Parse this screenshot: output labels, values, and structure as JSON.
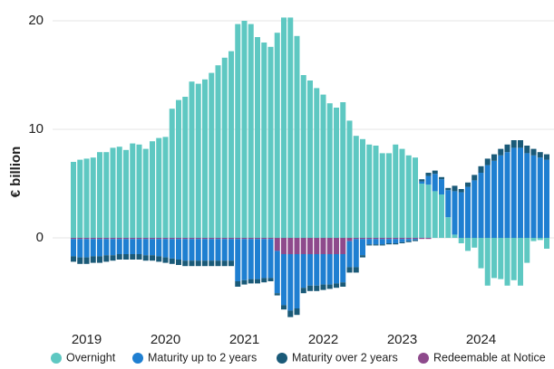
{
  "chart_data": {
    "type": "stacked-bar",
    "y_label": "€ billion",
    "categories": [
      null,
      null,
      "2019",
      null,
      null,
      null,
      null,
      null,
      null,
      null,
      null,
      null,
      null,
      null,
      "2020",
      null,
      null,
      null,
      null,
      null,
      null,
      null,
      null,
      null,
      null,
      null,
      "2021",
      null,
      null,
      null,
      null,
      null,
      null,
      null,
      null,
      null,
      null,
      null,
      "2022",
      null,
      null,
      null,
      null,
      null,
      null,
      null,
      null,
      null,
      null,
      null,
      "2023",
      null,
      null,
      null,
      null,
      null,
      null,
      null,
      null,
      null,
      null,
      null,
      "2024",
      null,
      null,
      null,
      null,
      null,
      null,
      null,
      null,
      null,
      null
    ],
    "series": [
      {
        "name": "Overnight",
        "color": "#5ec8c2",
        "values": [
          7.0,
          7.2,
          7.3,
          7.4,
          7.9,
          7.9,
          8.3,
          8.4,
          8.1,
          8.7,
          8.6,
          8.2,
          8.9,
          9.2,
          9.3,
          11.9,
          12.7,
          13.0,
          14.4,
          14.2,
          14.6,
          15.2,
          15.9,
          16.6,
          17.2,
          19.7,
          20.0,
          19.7,
          18.5,
          18.0,
          17.6,
          18.9,
          20.3,
          20.3,
          18.6,
          15.0,
          14.5,
          13.8,
          13.2,
          12.4,
          12.0,
          12.5,
          10.8,
          9.4,
          9.1,
          8.6,
          8.5,
          7.8,
          7.8,
          8.6,
          8.2,
          7.6,
          7.4,
          5.0,
          4.9,
          4.3,
          4.0,
          1.9,
          0.3,
          -0.5,
          -1.2,
          -0.9,
          -2.8,
          -4.4,
          -3.7,
          -3.8,
          -4.4,
          -3.9,
          -4.4,
          -2.3,
          -0.3,
          -0.2,
          -1.0
        ]
      },
      {
        "name": "Maturity up to 2 years",
        "color": "#1f7fd1",
        "values": [
          -1.6,
          -1.7,
          -1.7,
          -1.6,
          -1.6,
          -1.5,
          -1.5,
          -1.4,
          -1.4,
          -1.4,
          -1.4,
          -1.5,
          -1.5,
          -1.6,
          -1.7,
          -1.8,
          -1.9,
          -2.0,
          -2.0,
          -2.0,
          -2.0,
          -2.0,
          -2.0,
          -2.0,
          -2.0,
          -3.9,
          -3.8,
          -3.7,
          -3.7,
          -3.6,
          -3.6,
          -3.9,
          -4.7,
          -5.2,
          -5.0,
          -3.1,
          -2.9,
          -2.9,
          -2.8,
          -2.8,
          -2.7,
          -2.6,
          -2.4,
          -2.6,
          -1.5,
          -0.5,
          -0.5,
          -0.5,
          -0.4,
          -0.4,
          -0.3,
          -0.2,
          -0.1,
          0.2,
          0.8,
          1.6,
          1.4,
          2.5,
          4.0,
          4.2,
          4.7,
          5.3,
          6.0,
          6.7,
          7.1,
          7.6,
          7.9,
          8.3,
          8.3,
          7.8,
          7.6,
          7.4,
          7.2
        ]
      },
      {
        "name": "Maturity over 2 years",
        "color": "#1a5a78",
        "values": [
          -0.5,
          -0.6,
          -0.6,
          -0.6,
          -0.6,
          -0.6,
          -0.5,
          -0.5,
          -0.5,
          -0.5,
          -0.5,
          -0.5,
          -0.5,
          -0.5,
          -0.5,
          -0.5,
          -0.5,
          -0.5,
          -0.5,
          -0.5,
          -0.5,
          -0.5,
          -0.5,
          -0.5,
          -0.5,
          -0.5,
          -0.4,
          -0.4,
          -0.4,
          -0.4,
          -0.3,
          -0.2,
          -0.4,
          -0.6,
          -0.6,
          -0.5,
          -0.5,
          -0.5,
          -0.5,
          -0.4,
          -0.4,
          -0.4,
          -0.5,
          -0.5,
          -0.2,
          -0.1,
          -0.1,
          -0.1,
          -0.1,
          -0.1,
          -0.1,
          -0.1,
          -0.1,
          0.2,
          0.3,
          0.3,
          0.2,
          0.2,
          0.5,
          0.3,
          0.4,
          0.5,
          0.6,
          0.6,
          0.6,
          0.6,
          0.7,
          0.7,
          0.7,
          0.7,
          0.6,
          0.5,
          0.5
        ]
      },
      {
        "name": "Redeemable at Notice",
        "color": "#8e4a8c",
        "values": [
          -0.1,
          -0.1,
          -0.1,
          -0.1,
          -0.1,
          -0.1,
          -0.1,
          -0.1,
          -0.1,
          -0.1,
          -0.1,
          -0.1,
          -0.1,
          -0.1,
          -0.1,
          -0.1,
          -0.1,
          -0.1,
          -0.1,
          -0.1,
          -0.1,
          -0.1,
          -0.1,
          -0.1,
          -0.1,
          -0.1,
          -0.1,
          -0.1,
          -0.1,
          -0.1,
          -0.1,
          -1.2,
          -1.5,
          -1.5,
          -1.5,
          -1.5,
          -1.5,
          -1.5,
          -1.5,
          -1.5,
          -1.5,
          -1.5,
          -0.3,
          -0.1,
          -0.1,
          -0.1,
          -0.1,
          -0.1,
          -0.1,
          -0.1,
          -0.1,
          -0.1,
          -0.1,
          -0.1,
          -0.1,
          0,
          0,
          0,
          0,
          0,
          0,
          0,
          0,
          0,
          0,
          0,
          0,
          0,
          0,
          0,
          0,
          0,
          0
        ]
      }
    ],
    "ylim": [
      -7.5,
      20.5
    ],
    "yticks": [
      0,
      10,
      20
    ],
    "grid": true
  }
}
